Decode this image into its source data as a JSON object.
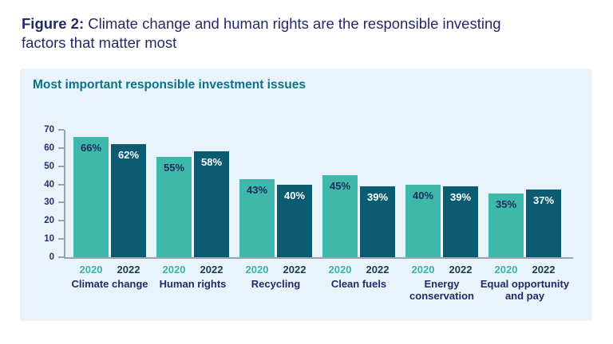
{
  "figure": {
    "title_bold": "Figure 2:",
    "title_line1": " Climate change and human rights are the responsible investing",
    "title_line2": "factors that matter most"
  },
  "panel": {
    "title": "Most important responsible investment issues"
  },
  "colors": {
    "figure_title": "#232A66",
    "panel_bg": "#E8F3FB",
    "panel_title": "#0A7389",
    "bar_2020": "#3DB8AB",
    "bar_2022": "#0B5C73",
    "value_2020": "#1F2A5C",
    "value_2022": "#FFFFFF",
    "year_2020": "#3AB3A6",
    "year_2022": "#17404F",
    "category_label": "#232A66",
    "axis": "#9AA4AE",
    "tick_label": "#2A3166"
  },
  "chart_data": {
    "type": "bar",
    "title": "Most important responsible investment issues",
    "categories": [
      "Climate change",
      "Human rights",
      "Recycling",
      "Clean fuels",
      "Energy conservation",
      "Equal opportunity and pay"
    ],
    "series": [
      {
        "name": "2020",
        "values": [
          66,
          55,
          43,
          45,
          40,
          35
        ]
      },
      {
        "name": "2022",
        "values": [
          62,
          58,
          40,
          39,
          39,
          37
        ]
      }
    ],
    "value_suffix": "%",
    "xlabel": "",
    "ylabel": "",
    "ylim": [
      0,
      70
    ],
    "yticks": [
      0,
      10,
      20,
      30,
      40,
      50,
      60,
      70
    ],
    "grid": false,
    "legend_position": "none (years labeled under each bar pair)"
  }
}
